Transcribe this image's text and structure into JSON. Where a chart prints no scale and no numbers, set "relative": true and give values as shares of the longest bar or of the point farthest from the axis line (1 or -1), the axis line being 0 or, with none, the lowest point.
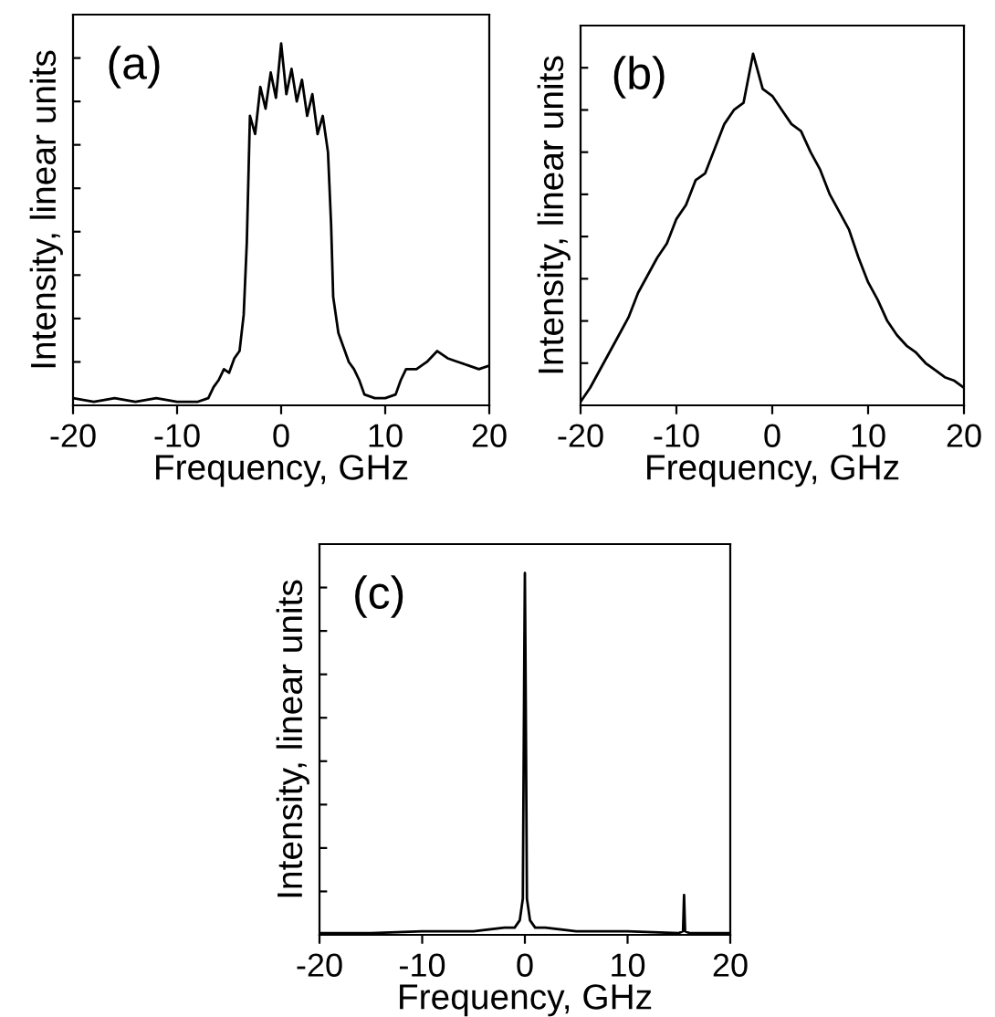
{
  "chart_data": [
    {
      "type": "line",
      "title": "(a)",
      "xlabel": "Frequency, GHz",
      "ylabel": "Intensity, linear units",
      "relative": true,
      "xlim": [
        -20,
        20
      ],
      "xticks": [
        -20,
        -10,
        0,
        10,
        20
      ],
      "tick_labels": "x",
      "legend": false,
      "grid": false,
      "x": [
        -20,
        -18,
        -16,
        -14,
        -12,
        -10,
        -8,
        -7,
        -6.5,
        -6,
        -5.5,
        -5,
        -4.5,
        -4,
        -3.6,
        -3.3,
        -3,
        -2.5,
        -2,
        -1.5,
        -1,
        -0.5,
        0,
        0.5,
        1,
        1.5,
        2,
        2.5,
        3,
        3.5,
        4,
        4.5,
        4.8,
        5,
        5.5,
        6,
        6.5,
        7,
        7.5,
        8,
        9,
        10,
        11,
        11.5,
        12,
        13,
        14,
        15,
        16,
        17,
        18,
        19,
        20
      ],
      "series": [
        {
          "color": "#000000",
          "values": [
            0.02,
            0.01,
            0.02,
            0.01,
            0.02,
            0.01,
            0.01,
            0.02,
            0.05,
            0.07,
            0.1,
            0.09,
            0.13,
            0.15,
            0.25,
            0.45,
            0.8,
            0.75,
            0.88,
            0.82,
            0.92,
            0.85,
            1.0,
            0.86,
            0.93,
            0.84,
            0.9,
            0.8,
            0.86,
            0.75,
            0.8,
            0.7,
            0.5,
            0.3,
            0.2,
            0.16,
            0.12,
            0.1,
            0.07,
            0.03,
            0.02,
            0.02,
            0.03,
            0.07,
            0.1,
            0.1,
            0.12,
            0.15,
            0.13,
            0.12,
            0.11,
            0.1,
            0.11
          ]
        }
      ]
    },
    {
      "type": "line",
      "title": "(b)",
      "xlabel": "Frequency, GHz",
      "ylabel": "Intensity, linear units",
      "relative": true,
      "xlim": [
        -20,
        20
      ],
      "xticks": [
        -20,
        -10,
        0,
        10,
        20
      ],
      "tick_labels": "x",
      "legend": false,
      "grid": false,
      "x": [
        -20,
        -19,
        -18,
        -17,
        -16,
        -15,
        -14,
        -13,
        -12,
        -11,
        -10,
        -9,
        -8,
        -7,
        -6,
        -5,
        -4,
        -3,
        -2,
        -1,
        0,
        1,
        2,
        3,
        4,
        5,
        6,
        7,
        8,
        9,
        10,
        11,
        12,
        13,
        14,
        15,
        16,
        17,
        18,
        19,
        20
      ],
      "series": [
        {
          "color": "#000000",
          "values": [
            0.01,
            0.05,
            0.1,
            0.15,
            0.2,
            0.25,
            0.32,
            0.37,
            0.42,
            0.46,
            0.53,
            0.57,
            0.64,
            0.66,
            0.73,
            0.8,
            0.84,
            0.86,
            1.0,
            0.9,
            0.88,
            0.84,
            0.8,
            0.78,
            0.72,
            0.67,
            0.6,
            0.55,
            0.5,
            0.42,
            0.35,
            0.3,
            0.24,
            0.2,
            0.17,
            0.15,
            0.12,
            0.1,
            0.08,
            0.07,
            0.05
          ]
        }
      ]
    },
    {
      "type": "line",
      "title": "(c)",
      "xlabel": "Frequency, GHz",
      "ylabel": "Intensity, linear units",
      "relative": true,
      "xlim": [
        -20,
        20
      ],
      "xticks": [
        -20,
        -10,
        0,
        10,
        20
      ],
      "tick_labels": "x",
      "legend": false,
      "grid": false,
      "x": [
        -20,
        -15,
        -10,
        -5,
        -2,
        -1,
        -0.5,
        -0.2,
        -0.05,
        0,
        0.05,
        0.2,
        0.5,
        1,
        2,
        5,
        10,
        15,
        15.4,
        15.5,
        15.6,
        16,
        20
      ],
      "series": [
        {
          "color": "#000000",
          "values": [
            0.005,
            0.005,
            0.01,
            0.01,
            0.02,
            0.02,
            0.04,
            0.1,
            0.8,
            1.0,
            0.8,
            0.1,
            0.04,
            0.02,
            0.02,
            0.01,
            0.01,
            0.005,
            0.01,
            0.11,
            0.01,
            0.005,
            0.005
          ]
        }
      ]
    }
  ]
}
